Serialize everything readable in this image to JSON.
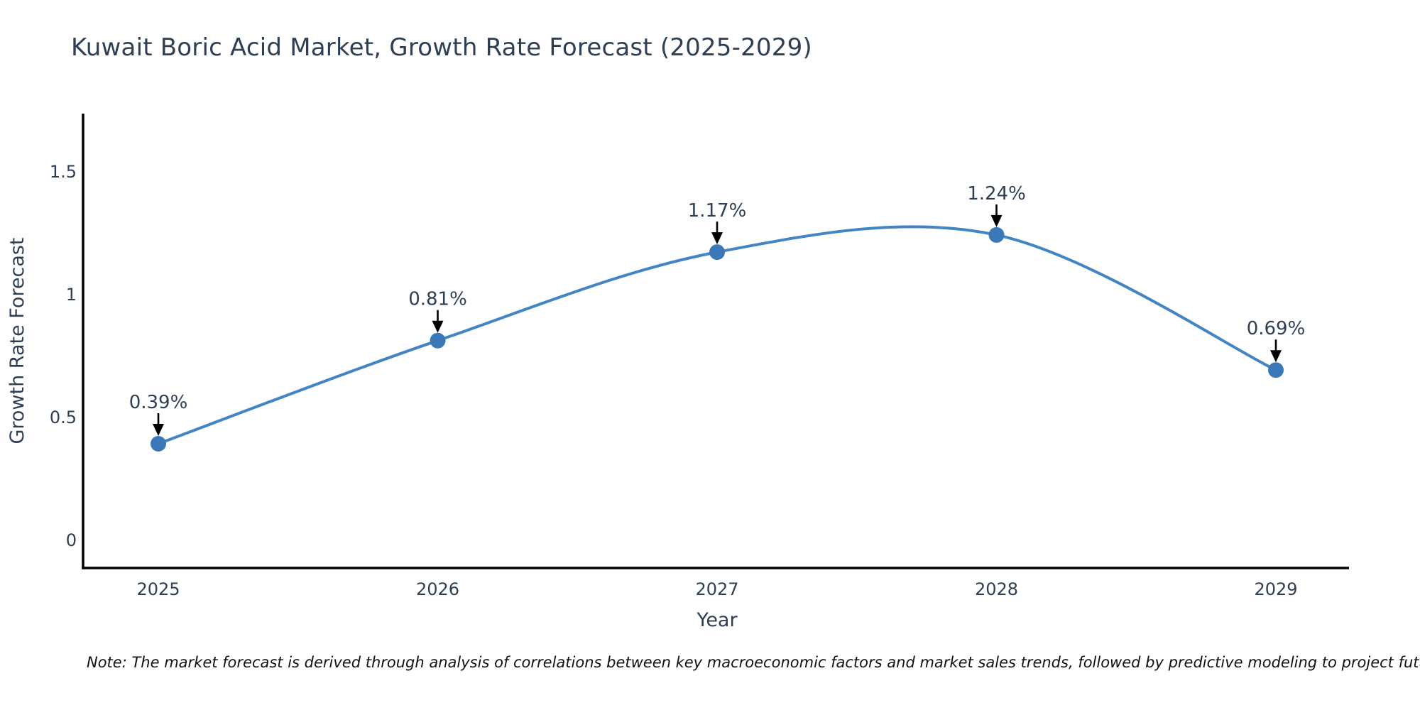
{
  "chart_data": {
    "type": "line",
    "title": "Kuwait Boric Acid Market, Growth Rate Forecast (2025-2029)",
    "x": [
      "2025",
      "2026",
      "2027",
      "2028",
      "2029"
    ],
    "values": [
      0.39,
      0.81,
      1.17,
      1.24,
      0.69
    ],
    "point_labels": [
      "0.39%",
      "0.81%",
      "1.17%",
      "1.24%",
      "0.69%"
    ],
    "xlabel": "Year",
    "ylabel": "Growth Rate Forecast",
    "yticks": [
      0,
      0.5,
      1,
      1.5
    ],
    "ytick_labels": [
      "0",
      "0.5",
      "1",
      "1.5"
    ],
    "ylim": [
      -0.116,
      1.734
    ],
    "line_shape": "spline",
    "grid": false,
    "legend": "none",
    "colors": {
      "line": "#4284c4",
      "marker": "#3a78b8",
      "arrow": "#000000",
      "axis": "#000000",
      "text": "#2e3f54"
    }
  },
  "note": "Note: The market forecast is derived through analysis of correlations between key macroeconomic factors and market sales trends, followed by predictive modeling to project future sales"
}
